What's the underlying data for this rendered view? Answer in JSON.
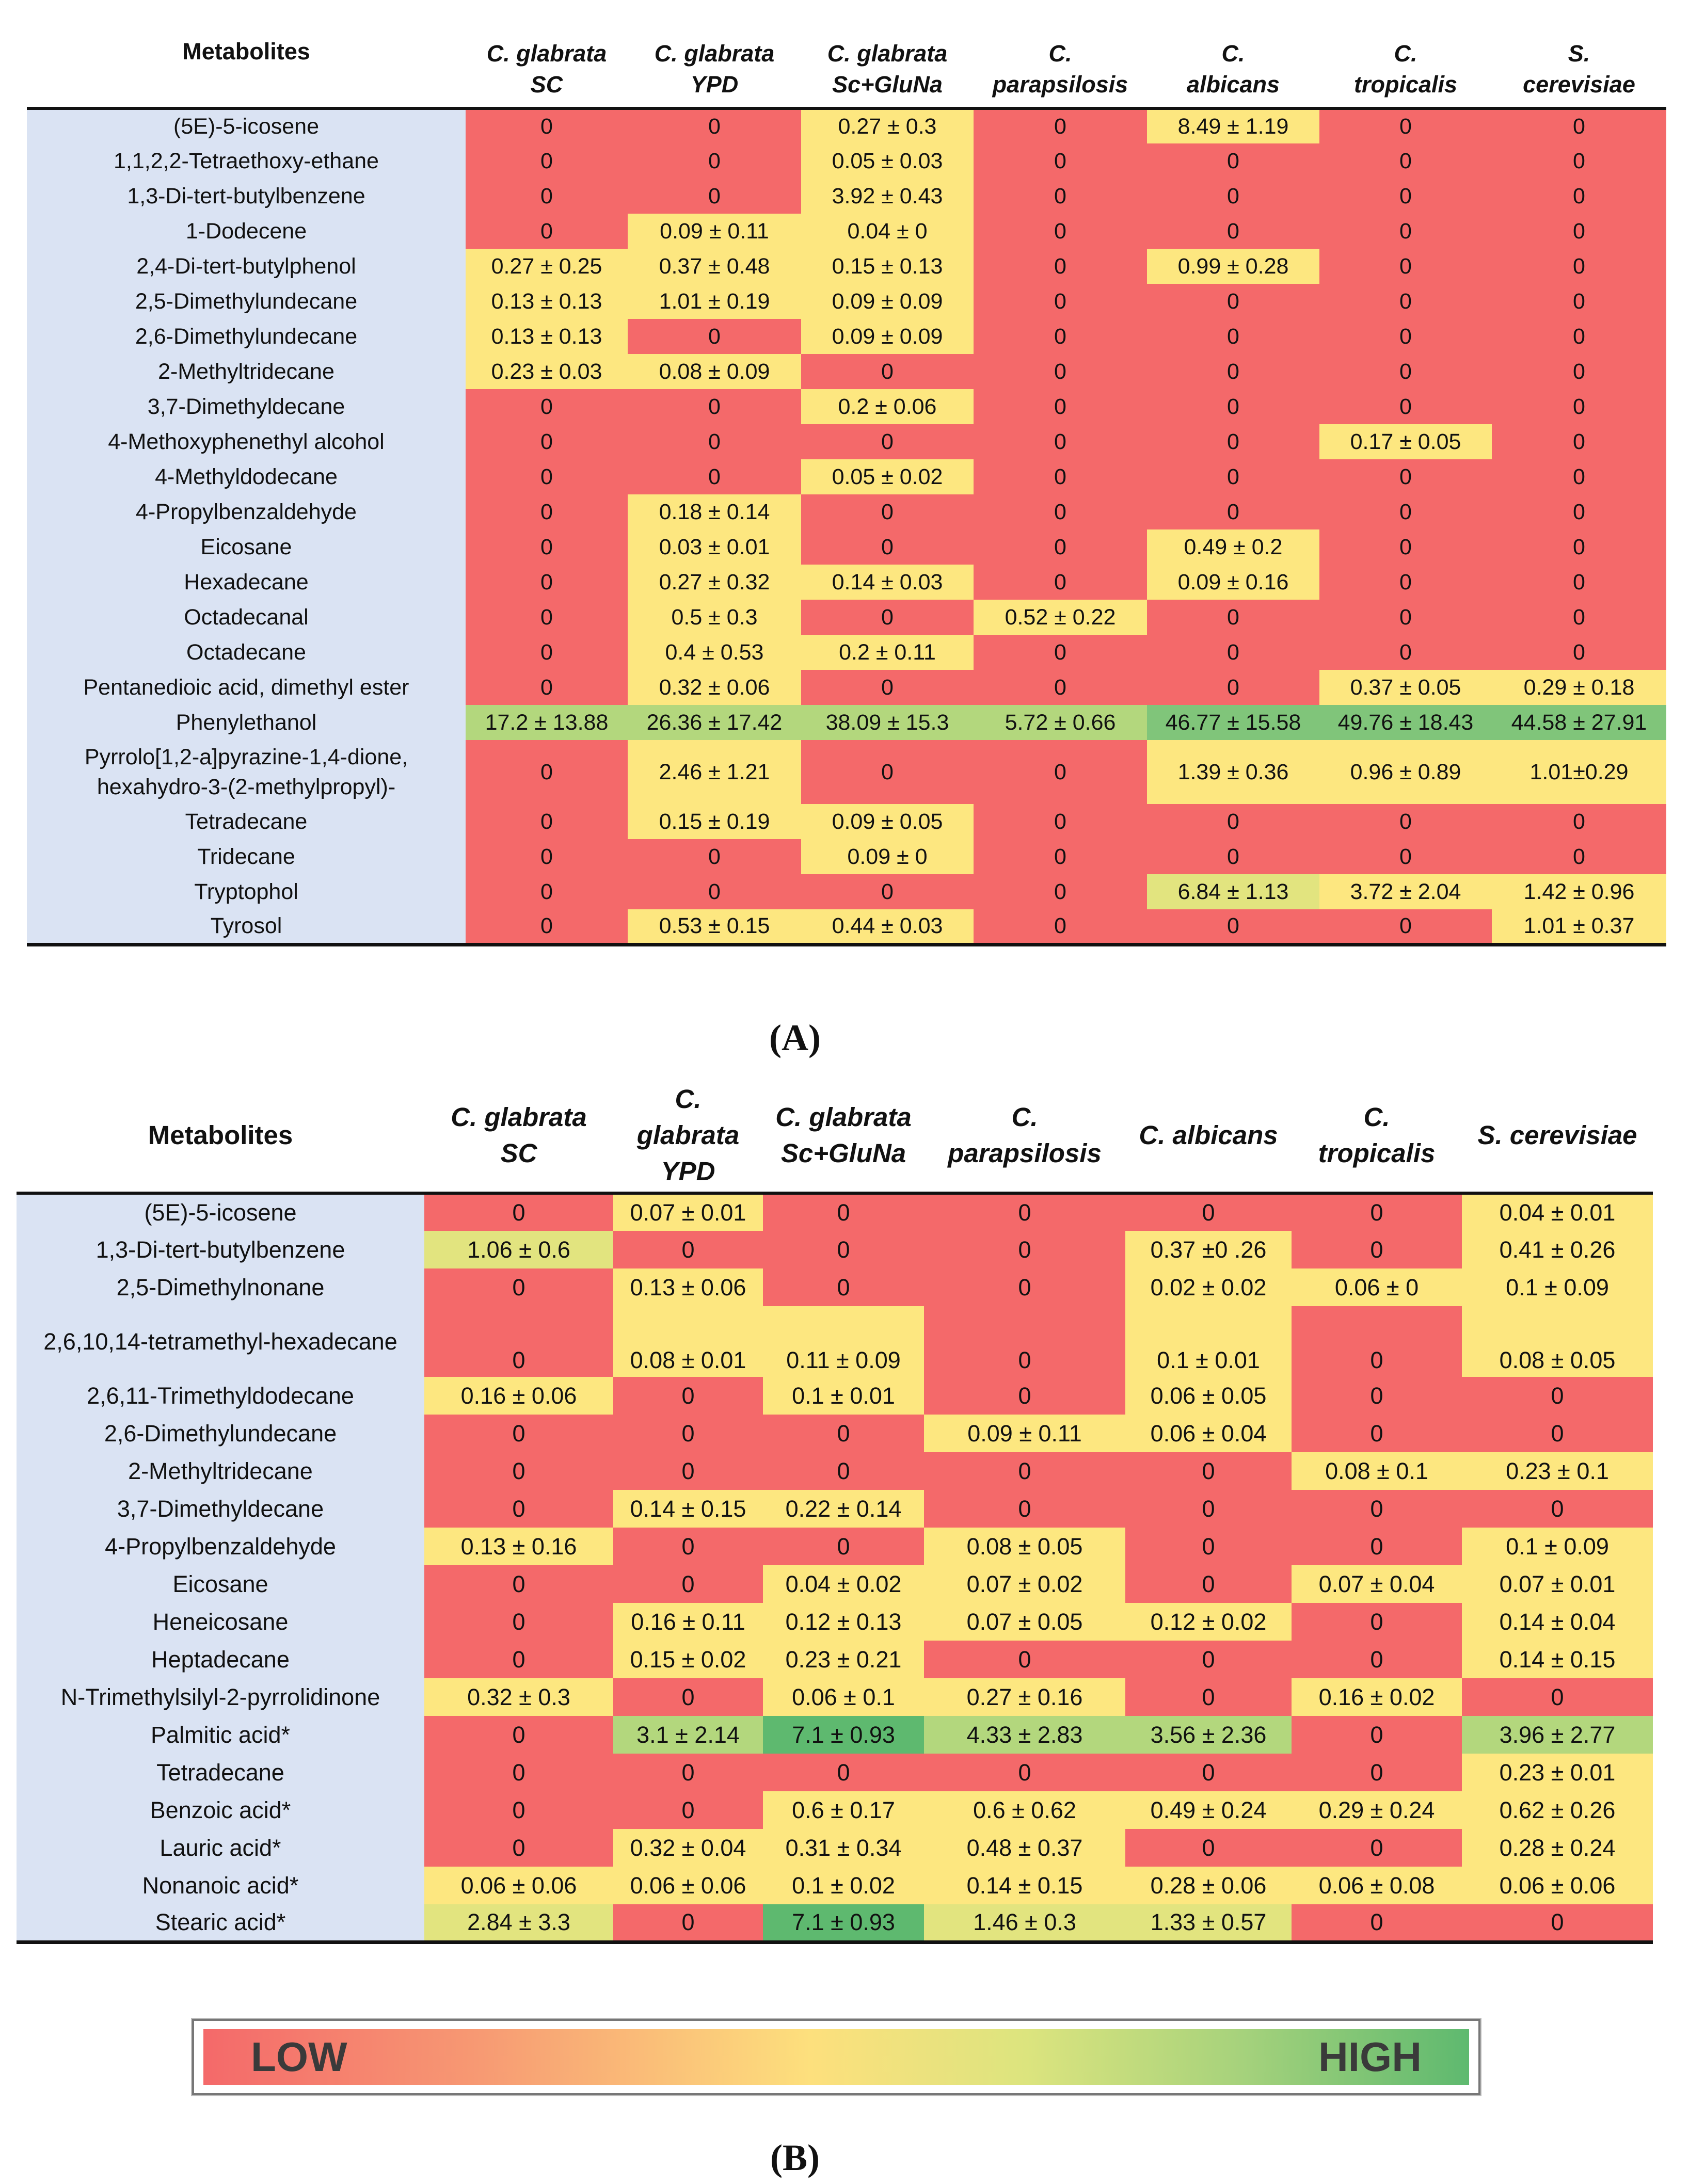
{
  "table_a": {
    "caption": "(A)",
    "header": {
      "metabolites": "Metabolites",
      "cols": [
        [
          "C. glabrata",
          "SC"
        ],
        [
          "C. glabrata",
          "YPD"
        ],
        [
          "C. glabrata",
          "Sc+GluNa"
        ],
        [
          "C.",
          "parapsilosis"
        ],
        [
          "C.",
          "albicans"
        ],
        [
          "C.",
          "tropicalis"
        ],
        [
          "S.",
          "cerevisiae"
        ]
      ]
    },
    "rows": [
      {
        "name": "(5E)-5-icosene",
        "values": [
          "0",
          "0",
          "0.27 ± 0.3",
          "0",
          "8.49 ± 1.19",
          "0",
          "0"
        ],
        "levels": [
          0,
          0,
          1,
          0,
          1,
          0,
          0
        ]
      },
      {
        "name": "1,1,2,2-Tetraethoxy-ethane",
        "values": [
          "0",
          "0",
          "0.05 ± 0.03",
          "0",
          "0",
          "0",
          "0"
        ],
        "levels": [
          0,
          0,
          1,
          0,
          0,
          0,
          0
        ]
      },
      {
        "name": "1,3-Di-tert-butylbenzene",
        "values": [
          "0",
          "0",
          "3.92 ± 0.43",
          "0",
          "0",
          "0",
          "0"
        ],
        "levels": [
          0,
          0,
          1,
          0,
          0,
          0,
          0
        ]
      },
      {
        "name": "1-Dodecene",
        "values": [
          "0",
          "0.09 ± 0.11",
          "0.04 ± 0",
          "0",
          "0",
          "0",
          "0"
        ],
        "levels": [
          0,
          1,
          1,
          0,
          0,
          0,
          0
        ]
      },
      {
        "name": "2,4-Di-tert-butylphenol",
        "values": [
          "0.27 ± 0.25",
          "0.37 ± 0.48",
          "0.15 ± 0.13",
          "0",
          "0.99 ± 0.28",
          "0",
          "0"
        ],
        "levels": [
          1,
          1,
          1,
          0,
          1,
          0,
          0
        ]
      },
      {
        "name": "2,5-Dimethylundecane",
        "values": [
          "0.13 ± 0.13",
          "1.01 ± 0.19",
          "0.09 ± 0.09",
          "0",
          "0",
          "0",
          "0"
        ],
        "levels": [
          1,
          1,
          1,
          0,
          0,
          0,
          0
        ]
      },
      {
        "name": "2,6-Dimethylundecane",
        "values": [
          "0.13 ± 0.13",
          "0",
          "0.09 ± 0.09",
          "0",
          "0",
          "0",
          "0"
        ],
        "levels": [
          1,
          0,
          1,
          0,
          0,
          0,
          0
        ]
      },
      {
        "name": "2-Methyltridecane",
        "values": [
          "0.23 ± 0.03",
          "0.08 ± 0.09",
          "0",
          "0",
          "0",
          "0",
          "0"
        ],
        "levels": [
          1,
          1,
          0,
          0,
          0,
          0,
          0
        ]
      },
      {
        "name": "3,7-Dimethyldecane",
        "values": [
          "0",
          "0",
          "0.2 ± 0.06",
          "0",
          "0",
          "0",
          "0"
        ],
        "levels": [
          0,
          0,
          1,
          0,
          0,
          0,
          0
        ]
      },
      {
        "name": "4-Methoxyphenethyl alcohol",
        "values": [
          "0",
          "0",
          "0",
          "0",
          "0",
          "0.17 ± 0.05",
          "0"
        ],
        "levels": [
          0,
          0,
          0,
          0,
          0,
          1,
          0
        ]
      },
      {
        "name": "4-Methyldodecane",
        "values": [
          "0",
          "0",
          "0.05 ± 0.02",
          "0",
          "0",
          "0",
          "0"
        ],
        "levels": [
          0,
          0,
          1,
          0,
          0,
          0,
          0
        ]
      },
      {
        "name": "4-Propylbenzaldehyde",
        "values": [
          "0",
          "0.18 ± 0.14",
          "0",
          "0",
          "0",
          "0",
          "0"
        ],
        "levels": [
          0,
          1,
          0,
          0,
          0,
          0,
          0
        ]
      },
      {
        "name": "Eicosane",
        "values": [
          "0",
          "0.03 ± 0.01",
          "0",
          "0",
          "0.49 ± 0.2",
          "0",
          "0"
        ],
        "levels": [
          0,
          1,
          0,
          0,
          1,
          0,
          0
        ]
      },
      {
        "name": "Hexadecane",
        "values": [
          "0",
          "0.27 ± 0.32",
          "0.14 ± 0.03",
          "0",
          "0.09 ± 0.16",
          "0",
          "0"
        ],
        "levels": [
          0,
          1,
          1,
          0,
          1,
          0,
          0
        ]
      },
      {
        "name": "Octadecanal",
        "values": [
          "0",
          "0.5 ± 0.3",
          "0",
          "0.52 ± 0.22",
          "0",
          "0",
          "0"
        ],
        "levels": [
          0,
          1,
          0,
          1,
          0,
          0,
          0
        ]
      },
      {
        "name": "Octadecane",
        "values": [
          "0",
          "0.4 ± 0.53",
          "0.2 ± 0.11",
          "0",
          "0",
          "0",
          "0"
        ],
        "levels": [
          0,
          1,
          1,
          0,
          0,
          0,
          0
        ]
      },
      {
        "name": "Pentanedioic acid, dimethyl ester",
        "values": [
          "0",
          "0.32 ± 0.06",
          "0",
          "0",
          "0",
          "0.37 ± 0.05",
          "0.29 ± 0.18"
        ],
        "levels": [
          0,
          1,
          0,
          0,
          0,
          1,
          1
        ]
      },
      {
        "name": "Phenylethanol",
        "values": [
          "17.2 ± 13.88",
          "26.36 ± 17.42",
          "38.09 ± 15.3",
          "5.72 ± 0.66",
          "46.77 ± 15.58",
          "49.76 ± 18.43",
          "44.58 ± 27.91"
        ],
        "levels": [
          3,
          3,
          3,
          3,
          4,
          4,
          4
        ]
      },
      {
        "name": "Pyrrolo[1,2-a]pyrazine-1,4-dione, hexahydro-3-(2-methylpropyl)-",
        "values": [
          "0",
          "2.46 ± 1.21",
          "0",
          "0",
          "1.39 ± 0.36",
          "0.96 ± 0.89",
          "1.01±0.29"
        ],
        "levels": [
          0,
          1,
          0,
          0,
          1,
          1,
          1
        ],
        "tall": true
      },
      {
        "name": "Tetradecane",
        "values": [
          "0",
          "0.15 ± 0.19",
          "0.09 ± 0.05",
          "0",
          "0",
          "0",
          "0"
        ],
        "levels": [
          0,
          1,
          1,
          0,
          0,
          0,
          0
        ]
      },
      {
        "name": "Tridecane",
        "values": [
          "0",
          "0",
          "0.09 ± 0",
          "0",
          "0",
          "0",
          "0"
        ],
        "levels": [
          0,
          0,
          1,
          0,
          0,
          0,
          0
        ]
      },
      {
        "name": "Tryptophol",
        "values": [
          "0",
          "0",
          "0",
          "0",
          "6.84 ± 1.13",
          "3.72 ± 2.04",
          "1.42 ± 0.96"
        ],
        "levels": [
          0,
          0,
          0,
          0,
          2,
          1,
          1
        ]
      },
      {
        "name": "Tyrosol",
        "values": [
          "0",
          "0.53 ± 0.15",
          "0.44 ± 0.03",
          "0",
          "0",
          "0",
          "1.01 ± 0.37"
        ],
        "levels": [
          0,
          1,
          1,
          0,
          0,
          0,
          1
        ]
      }
    ]
  },
  "table_b": {
    "caption": "(B)",
    "header": {
      "metabolites": "Metabolites",
      "cols": [
        [
          "C. glabrata",
          "SC"
        ],
        [
          "C.",
          "glabrata",
          "YPD"
        ],
        [
          "C. glabrata",
          "Sc+GluNa"
        ],
        [
          "C.",
          "parapsilosis"
        ],
        [
          "C. albicans"
        ],
        [
          "C.",
          "tropicalis"
        ],
        [
          "S. cerevisiae"
        ]
      ]
    },
    "rows": [
      {
        "name": "(5E)-5-icosene",
        "values": [
          "0",
          "0.07 ± 0.01",
          "0",
          "0",
          "0",
          "0",
          "0.04 ± 0.01"
        ],
        "levels": [
          0,
          1,
          0,
          0,
          0,
          0,
          1
        ]
      },
      {
        "name": "1,3-Di-tert-butylbenzene",
        "values": [
          "1.06 ± 0.6",
          "0",
          "0",
          "0",
          "0.37 ±0 .26",
          "0",
          "0.41 ± 0.26"
        ],
        "levels": [
          2,
          0,
          0,
          0,
          1,
          0,
          1
        ]
      },
      {
        "name": "2,5-Dimethylnonane",
        "values": [
          "0",
          "0.13 ± 0.06",
          "0",
          "0",
          "0.02 ± 0.02",
          "0.06 ± 0",
          "0.1 ± 0.09"
        ],
        "levels": [
          0,
          1,
          0,
          0,
          1,
          1,
          1
        ]
      },
      {
        "name": "2,6,10,14-tetramethyl-hexadecane",
        "values": [
          "0",
          "0.08 ± 0.01",
          "0.11 ± 0.09",
          "0",
          "0.1 ± 0.01",
          "0",
          "0.08 ± 0.05"
        ],
        "levels": [
          0,
          1,
          1,
          0,
          1,
          0,
          1
        ],
        "tall": true
      },
      {
        "name": "2,6,11-Trimethyldodecane",
        "values": [
          "0.16 ± 0.06",
          "0",
          "0.1 ± 0.01",
          "0",
          "0.06 ± 0.05",
          "0",
          "0"
        ],
        "levels": [
          1,
          0,
          1,
          0,
          1,
          0,
          0
        ]
      },
      {
        "name": "2,6-Dimethylundecane",
        "values": [
          "0",
          "0",
          "0",
          "0.09 ± 0.11",
          "0.06 ± 0.04",
          "0",
          "0"
        ],
        "levels": [
          0,
          0,
          0,
          1,
          1,
          0,
          0
        ]
      },
      {
        "name": "2-Methyltridecane",
        "values": [
          "0",
          "0",
          "0",
          "0",
          "0",
          "0.08 ± 0.1",
          "0.23 ± 0.1"
        ],
        "levels": [
          0,
          0,
          0,
          0,
          0,
          1,
          1
        ]
      },
      {
        "name": "3,7-Dimethyldecane",
        "values": [
          "0",
          "0.14 ± 0.15",
          "0.22 ± 0.14",
          "0",
          "0",
          "0",
          "0"
        ],
        "levels": [
          0,
          1,
          1,
          0,
          0,
          0,
          0
        ]
      },
      {
        "name": "4-Propylbenzaldehyde",
        "values": [
          "0.13 ± 0.16",
          "0",
          "0",
          "0.08 ± 0.05",
          "0",
          "0",
          "0.1 ± 0.09"
        ],
        "levels": [
          1,
          0,
          0,
          1,
          0,
          0,
          1
        ]
      },
      {
        "name": "Eicosane",
        "values": [
          "0",
          "0",
          "0.04 ± 0.02",
          "0.07 ± 0.02",
          "0",
          "0.07 ± 0.04",
          "0.07 ± 0.01"
        ],
        "levels": [
          0,
          0,
          1,
          1,
          0,
          1,
          1
        ]
      },
      {
        "name": "Heneicosane",
        "values": [
          "0",
          "0.16 ± 0.11",
          "0.12 ± 0.13",
          "0.07 ± 0.05",
          "0.12 ± 0.02",
          "0",
          "0.14 ± 0.04"
        ],
        "levels": [
          0,
          1,
          1,
          1,
          1,
          0,
          1
        ]
      },
      {
        "name": "Heptadecane",
        "values": [
          "0",
          "0.15 ± 0.02",
          "0.23 ± 0.21",
          "0",
          "0",
          "0",
          "0.14 ± 0.15"
        ],
        "levels": [
          0,
          1,
          1,
          0,
          0,
          0,
          1
        ]
      },
      {
        "name": "N-Trimethylsilyl-2-pyrrolidinone",
        "values": [
          "0.32 ± 0.3",
          "0",
          "0.06 ± 0.1",
          "0.27 ± 0.16",
          "0",
          "0.16 ± 0.02",
          "0"
        ],
        "levels": [
          1,
          0,
          1,
          1,
          0,
          1,
          0
        ]
      },
      {
        "name": "Palmitic acid*",
        "values": [
          "0",
          "3.1 ± 2.14",
          "7.1 ± 0.93",
          "4.33 ± 2.83",
          "3.56 ± 2.36",
          "0",
          "3.96 ± 2.77"
        ],
        "levels": [
          0,
          3,
          5,
          3,
          3,
          0,
          3
        ]
      },
      {
        "name": "Tetradecane",
        "values": [
          "0",
          "0",
          "0",
          "0",
          "0",
          "0",
          "0.23 ± 0.01"
        ],
        "levels": [
          0,
          0,
          0,
          0,
          0,
          0,
          1
        ]
      },
      {
        "name": "Benzoic acid*",
        "values": [
          "0",
          "0",
          "0.6 ± 0.17",
          "0.6 ± 0.62",
          "0.49 ± 0.24",
          "0.29 ± 0.24",
          "0.62 ± 0.26"
        ],
        "levels": [
          0,
          0,
          1,
          1,
          1,
          1,
          1
        ]
      },
      {
        "name": "Lauric acid*",
        "values": [
          "0",
          "0.32 ± 0.04",
          "0.31 ± 0.34",
          "0.48 ± 0.37",
          "0",
          "0",
          "0.28 ± 0.24"
        ],
        "levels": [
          0,
          1,
          1,
          1,
          0,
          0,
          1
        ]
      },
      {
        "name": "Nonanoic acid*",
        "values": [
          "0.06 ± 0.06",
          "0.06 ± 0.06",
          "0.1 ± 0.02",
          "0.14 ± 0.15",
          "0.28 ± 0.06",
          "0.06 ± 0.08",
          "0.06 ± 0.06"
        ],
        "levels": [
          1,
          1,
          1,
          1,
          1,
          1,
          1
        ]
      },
      {
        "name": "Stearic acid*",
        "values": [
          "2.84 ± 3.3",
          "0",
          "7.1 ± 0.93",
          "1.46 ± 0.3",
          "1.33 ± 0.57",
          "0",
          "0"
        ],
        "levels": [
          2,
          0,
          5,
          2,
          2,
          0,
          0
        ]
      }
    ]
  },
  "legend": {
    "low": "LOW",
    "high": "HIGH",
    "low_color": "#f4696a",
    "mid_color": "#fde07d",
    "high_color": "#5eb96f"
  }
}
